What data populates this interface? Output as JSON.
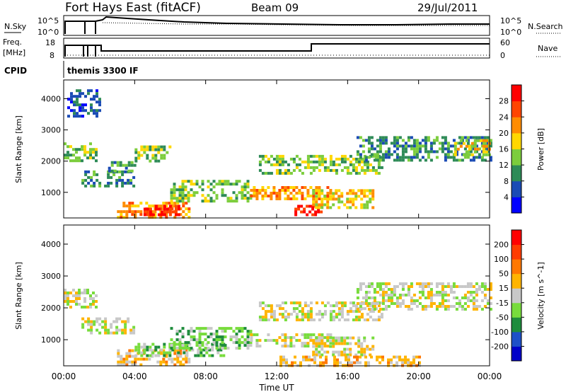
{
  "header": {
    "title": "Fort Hays East (fitACF)",
    "beam": "Beam 09",
    "date": "29/Jul/2011"
  },
  "nsky_panel": {
    "left_label": "N.Sky",
    "right_label": "N.Search",
    "left_ticks": [
      "10^5",
      "10^0"
    ],
    "right_ticks": [
      "10^5",
      "10^0"
    ]
  },
  "freq_panel": {
    "left_label_line1": "Freq.",
    "left_label_line2": "[MHz]",
    "right_label": "Nave",
    "left_ticks": [
      "18",
      "8"
    ],
    "right_ticks": [
      "60",
      "0"
    ]
  },
  "cpid_panel": {
    "label": "CPID",
    "text": "themis 3300 IF"
  },
  "chart_data": [
    {
      "type": "heatmap",
      "title": "",
      "xlabel": "Time UT",
      "ylabel": "Slant Range [km]",
      "x_ticks": [
        "00:00",
        "04:00",
        "08:00",
        "12:00",
        "16:00",
        "20:00",
        "00:00"
      ],
      "y_ticks": [
        "1000",
        "2000",
        "3000",
        "4000"
      ],
      "xlim_hours": [
        0,
        24
      ],
      "ylim_km": [
        180,
        4600
      ],
      "colorbar": {
        "label": "Power [dB]",
        "ticks": [
          "4",
          "8",
          "12",
          "16",
          "20",
          "24",
          "28"
        ],
        "colors": [
          "#0000ff",
          "#1a4bb5",
          "#2e8b57",
          "#7ccd3c",
          "#ffd700",
          "#ff8c00",
          "#ff4500",
          "#ff0000"
        ]
      },
      "regions": [
        {
          "t0": 0.0,
          "t1": 1.8,
          "r0": 2000,
          "r1": 2600,
          "level": 3
        },
        {
          "t0": 0.2,
          "t1": 2.0,
          "r0": 3400,
          "r1": 4300,
          "level": 1
        },
        {
          "t0": 1.0,
          "t1": 4.0,
          "r0": 1200,
          "r1": 1700,
          "level": 2
        },
        {
          "t0": 2.5,
          "t1": 4.2,
          "r0": 1700,
          "r1": 2000,
          "level": 2
        },
        {
          "t0": 3.0,
          "t1": 7.0,
          "r0": 200,
          "r1": 700,
          "level": 5
        },
        {
          "t0": 4.5,
          "t1": 6.5,
          "r0": 300,
          "r1": 600,
          "level": 7
        },
        {
          "t0": 4.0,
          "t1": 6.0,
          "r0": 2000,
          "r1": 2500,
          "level": 3
        },
        {
          "t0": 6.0,
          "t1": 10.5,
          "r0": 700,
          "r1": 1400,
          "level": 3
        },
        {
          "t0": 10.5,
          "t1": 15.0,
          "r0": 800,
          "r1": 1200,
          "level": 5
        },
        {
          "t0": 13.0,
          "t1": 14.5,
          "r0": 300,
          "r1": 600,
          "level": 7
        },
        {
          "t0": 11.0,
          "t1": 18.0,
          "r0": 1600,
          "r1": 2200,
          "level": 3
        },
        {
          "t0": 14.0,
          "t1": 17.5,
          "r0": 500,
          "r1": 1100,
          "level": 4
        },
        {
          "t0": 16.5,
          "t1": 24.0,
          "r0": 2000,
          "r1": 2800,
          "level": 2
        },
        {
          "t0": 22.0,
          "t1": 24.0,
          "r0": 2200,
          "r1": 2700,
          "level": 4
        }
      ]
    },
    {
      "type": "heatmap",
      "title": "",
      "xlabel": "Time UT",
      "ylabel": "Slant Range [km]",
      "x_ticks": [
        "00:00",
        "04:00",
        "08:00",
        "12:00",
        "16:00",
        "20:00",
        "00:00"
      ],
      "y_ticks": [
        "1000",
        "2000",
        "3000",
        "4000"
      ],
      "xlim_hours": [
        0,
        24
      ],
      "ylim_km": [
        180,
        4600
      ],
      "colorbar": {
        "label": "Velocity [m s^-1]",
        "ticks": [
          "200",
          "100",
          "50",
          "15",
          "-15",
          "-50",
          "-100",
          "-200"
        ],
        "colors": [
          "#0000c8",
          "#1e50c8",
          "#1e8c3c",
          "#78dc3c",
          "#c8c8c8",
          "#ffb400",
          "#ff7800",
          "#ff3c00",
          "#ff0000"
        ]
      },
      "regions": [
        {
          "t0": 0.0,
          "t1": 1.8,
          "r0": 2000,
          "r1": 2600,
          "level": 4
        },
        {
          "t0": 1.0,
          "t1": 4.0,
          "r0": 1200,
          "r1": 1700,
          "level": 4
        },
        {
          "t0": 3.0,
          "t1": 7.0,
          "r0": 200,
          "r1": 700,
          "level": 5
        },
        {
          "t0": 4.0,
          "t1": 9.0,
          "r0": 500,
          "r1": 900,
          "level": 3
        },
        {
          "t0": 6.0,
          "t1": 10.5,
          "r0": 700,
          "r1": 1400,
          "level": 3
        },
        {
          "t0": 10.5,
          "t1": 15.0,
          "r0": 800,
          "r1": 1200,
          "level": 4
        },
        {
          "t0": 11.0,
          "t1": 18.0,
          "r0": 1600,
          "r1": 2200,
          "level": 4
        },
        {
          "t0": 14.0,
          "t1": 17.5,
          "r0": 500,
          "r1": 1100,
          "level": 4
        },
        {
          "t0": 12.0,
          "t1": 20.0,
          "r0": 200,
          "r1": 500,
          "level": 5
        },
        {
          "t0": 16.5,
          "t1": 24.0,
          "r0": 2000,
          "r1": 2800,
          "level": 4
        }
      ]
    }
  ]
}
